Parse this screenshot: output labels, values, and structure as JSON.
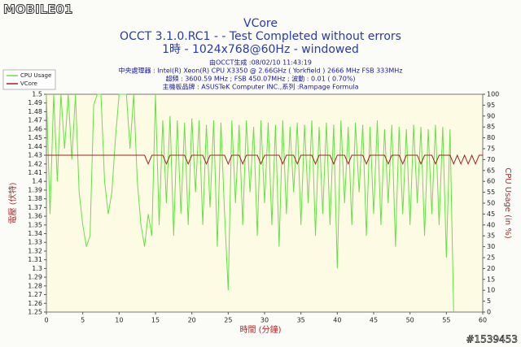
{
  "logo": "MOBILE01",
  "watermark": "#1539453",
  "chart_data": {
    "type": "line",
    "title": "VCore",
    "subtitle": "OCCT 3.1.0.RC1 -  - Test Completed without errors",
    "subtitle2": "1時 - 1024x768@60Hz - windowed",
    "info": [
      "由OCCT生成 :08/02/10 11:43:19",
      "中央處理器 : Intel(R) Xeon(R) CPU X3350 @ 2.66GHz ( Yorkfield ) 2666 MHz FSB 333MHz",
      "超頻 : 3600.59 MHz ; FSB 450.07MHz ; 波動 : 0.01 ( 0.70%)",
      "主機板品牌 : ASUSTeK Computer INC.,系列 :Rampage Formula"
    ],
    "xlabel": "時間 (分鐘)",
    "ylabel": "電壓 (伏特)",
    "y2label": "CPU Usage (in %)",
    "xlim": [
      0,
      60
    ],
    "xticks": [
      0,
      5,
      10,
      15,
      20,
      25,
      30,
      35,
      40,
      45,
      50,
      55,
      60
    ],
    "ylim": [
      1.25,
      1.5
    ],
    "yticks": [
      1.25,
      1.26,
      1.27,
      1.28,
      1.29,
      1.3,
      1.31,
      1.32,
      1.33,
      1.34,
      1.35,
      1.36,
      1.37,
      1.38,
      1.39,
      1.4,
      1.41,
      1.42,
      1.43,
      1.44,
      1.45,
      1.46,
      1.47,
      1.48,
      1.49,
      1.5
    ],
    "y2lim": [
      0,
      100
    ],
    "y2ticks": [
      0,
      5,
      10,
      15,
      20,
      25,
      30,
      35,
      40,
      45,
      50,
      55,
      60,
      65,
      70,
      75,
      80,
      85,
      90,
      95,
      100
    ],
    "legend": "top-left",
    "x": [
      0,
      0.5,
      1,
      1.5,
      2,
      2.5,
      3,
      3.5,
      4,
      4.5,
      5,
      5.5,
      6,
      6.5,
      7,
      7.5,
      8,
      8.5,
      9,
      9.5,
      10,
      10.5,
      11,
      11.5,
      12,
      12.5,
      13,
      13.5,
      14,
      14.5,
      15,
      15.5,
      16,
      16.5,
      17,
      17.5,
      18,
      18.5,
      19,
      19.5,
      20,
      20.5,
      21,
      21.5,
      22,
      22.5,
      23,
      23.5,
      24,
      24.5,
      25,
      25.5,
      26,
      26.5,
      27,
      27.5,
      28,
      28.5,
      29,
      29.5,
      30,
      30.5,
      31,
      31.5,
      32,
      32.5,
      33,
      33.5,
      34,
      34.5,
      35,
      35.5,
      36,
      36.5,
      37,
      37.5,
      38,
      38.5,
      39,
      39.5,
      40,
      40.5,
      41,
      41.5,
      42,
      42.5,
      43,
      43.5,
      44,
      44.5,
      45,
      45.5,
      46,
      46.5,
      47,
      47.5,
      48,
      48.5,
      49,
      49.5,
      50,
      50.5,
      51,
      51.5,
      52,
      52.5,
      53,
      53.5,
      54,
      54.5,
      55,
      55.5,
      56,
      56.5,
      57,
      57.5,
      58,
      58.5,
      59,
      59.5,
      60
    ],
    "series": [
      {
        "name": "CPU Usage",
        "color": "#66e04a",
        "axis": "y2",
        "values": [
          100,
          45,
          100,
          60,
          100,
          75,
          100,
          70,
          100,
          55,
          40,
          30,
          35,
          95,
          100,
          100,
          60,
          45,
          55,
          80,
          100,
          100,
          100,
          75,
          100,
          60,
          40,
          30,
          45,
          35,
          100,
          40,
          88,
          50,
          90,
          35,
          88,
          45,
          87,
          40,
          89,
          55,
          88,
          40,
          86,
          48,
          88,
          30,
          87,
          45,
          10,
          88,
          50,
          86,
          40,
          88,
          55,
          85,
          35,
          88,
          50,
          87,
          40,
          86,
          30,
          88,
          45,
          85,
          55,
          87,
          40,
          86,
          50,
          88,
          35,
          85,
          45,
          87,
          40,
          86,
          20,
          88,
          50,
          85,
          40,
          87,
          55,
          86,
          35,
          85,
          45,
          88,
          40,
          84,
          50,
          86,
          30,
          85,
          45,
          84,
          40,
          86,
          50,
          85,
          35,
          84,
          45,
          86,
          40,
          85,
          25,
          84,
          0,
          null,
          null,
          null,
          null,
          null,
          null,
          null,
          null
        ]
      },
      {
        "name": "VCore",
        "color": "#a02020",
        "values": [
          1.43,
          1.43,
          1.43,
          1.43,
          1.43,
          1.43,
          1.43,
          1.43,
          1.43,
          1.43,
          1.43,
          1.43,
          1.43,
          1.43,
          1.43,
          1.43,
          1.43,
          1.43,
          1.43,
          1.43,
          1.43,
          1.43,
          1.43,
          1.43,
          1.43,
          1.43,
          1.43,
          1.43,
          1.42,
          1.43,
          1.43,
          1.43,
          1.43,
          1.42,
          1.43,
          1.43,
          1.43,
          1.43,
          1.43,
          1.42,
          1.43,
          1.43,
          1.43,
          1.43,
          1.42,
          1.43,
          1.43,
          1.43,
          1.43,
          1.43,
          1.42,
          1.43,
          1.43,
          1.43,
          1.42,
          1.43,
          1.43,
          1.43,
          1.43,
          1.42,
          1.43,
          1.43,
          1.43,
          1.43,
          1.43,
          1.42,
          1.43,
          1.43,
          1.43,
          1.42,
          1.43,
          1.43,
          1.43,
          1.43,
          1.42,
          1.43,
          1.43,
          1.43,
          1.43,
          1.42,
          1.43,
          1.43,
          1.43,
          1.42,
          1.43,
          1.43,
          1.43,
          1.43,
          1.42,
          1.43,
          1.43,
          1.43,
          1.43,
          1.43,
          1.42,
          1.43,
          1.43,
          1.43,
          1.42,
          1.43,
          1.43,
          1.43,
          1.43,
          1.42,
          1.43,
          1.43,
          1.43,
          1.42,
          1.43,
          1.43,
          1.43,
          1.43,
          1.42,
          1.43,
          1.42,
          1.43,
          1.42,
          1.43,
          1.42,
          1.43,
          1.43
        ]
      }
    ]
  }
}
